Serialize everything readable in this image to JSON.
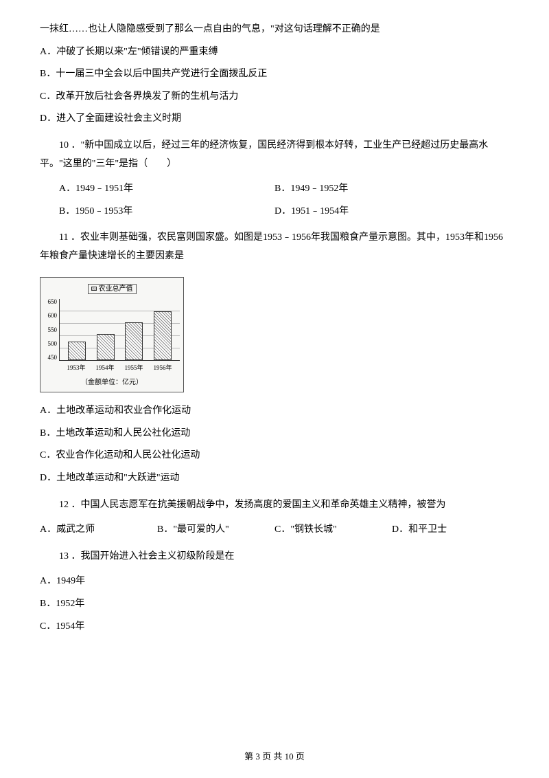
{
  "q9_stem_cont": "一抹红……也让人隐隐感受到了那么一点自由的气息，\"对这句话理解不正确的是",
  "q9": {
    "A": "A．冲破了长期以来\"左\"倾错误的严重束缚",
    "B": "B．十一届三中全会以后中国共产党进行全面拨乱反正",
    "C": "C．改革开放后社会各界焕发了新的生机与活力",
    "D": "D．进入了全面建设社会主义时期"
  },
  "q10": {
    "stem": "10 ．\"新中国成立以后，经过三年的经济恢复，国民经济得到根本好转，工业生产已经超过历史最高水平。\"这里的\"三年\"是指（　　）",
    "A": "A．1949﹣1951年",
    "B": "B．1949﹣1952年",
    "B2": "B．1950﹣1953年",
    "D": "D．1951﹣1954年"
  },
  "q11": {
    "stem": "11 ．农业丰则基础强，农民富则国家盛。如图是1953﹣1956年我国粮食产量示意图。其中，1953年和1956年粮食产量快速增长的主要因素是",
    "A": "A．土地改革运动和农业合作化运动",
    "B": "B．土地改革运动和人民公社化运动",
    "C": "C．农业合作化运动和人民公社化运动",
    "D": "D．土地改革运动和\"大跃进\"运动"
  },
  "chart": {
    "legend": "农业总产值",
    "yticks": [
      "650",
      "600",
      "550",
      "500",
      "450"
    ],
    "xlabels": [
      "1953年",
      "1954年",
      "1955年",
      "1956年"
    ],
    "caption": "（金额单位：亿元）",
    "values": [
      510,
      535,
      575,
      610
    ],
    "ymin": 450,
    "ymax": 650,
    "bar_fill_pattern": "diagonal-hatch",
    "bar_border": "#333333",
    "grid_color": "#b5b5b5",
    "background": "#f7f7f5",
    "title_fontsize": 10,
    "label_fontsize": 9
  },
  "q12": {
    "stem": "12 ．中国人民志愿军在抗美援朝战争中，发扬高度的爱国主义和革命英雄主义精神，被誉为",
    "A": "A．威武之师",
    "B": "B．\"最可爱的人\"",
    "C": "C．\"钢铁长城\"",
    "D": "D．和平卫士"
  },
  "q13": {
    "stem": "13 ．我国开始进入社会主义初级阶段是在",
    "A": "A．1949年",
    "B": "B．1952年",
    "C": "C．1954年"
  },
  "footer": "第 3 页 共 10 页"
}
